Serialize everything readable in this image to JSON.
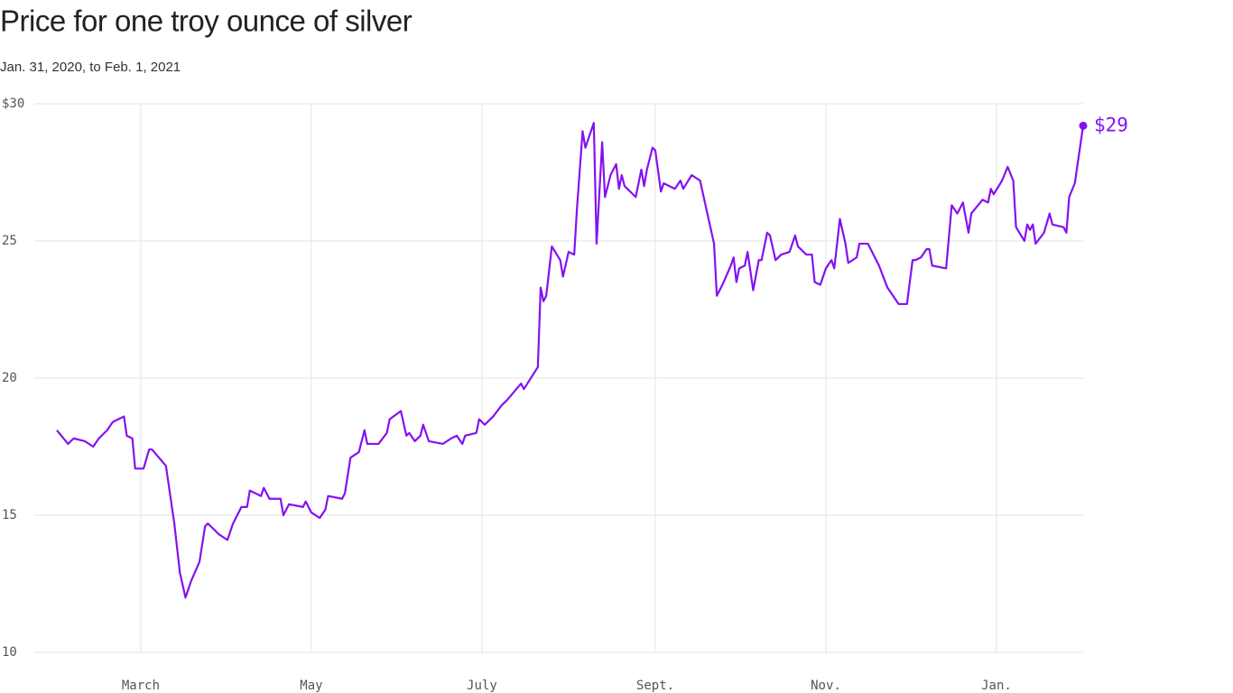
{
  "chart_data": {
    "type": "line",
    "title": "Price for one troy ounce of silver",
    "subtitle": "Jan. 31, 2020, to Feb. 1, 2021",
    "xlim": [
      "2020-01-31",
      "2021-02-01"
    ],
    "xticks": [
      {
        "value": "2020-03-01",
        "label": "March"
      },
      {
        "value": "2020-05-01",
        "label": "May"
      },
      {
        "value": "2020-07-01",
        "label": "July"
      },
      {
        "value": "2020-09-01",
        "label": "Sept."
      },
      {
        "value": "2020-11-01",
        "label": "Nov."
      },
      {
        "value": "2021-01-01",
        "label": "Jan."
      }
    ],
    "ylim": [
      10,
      30
    ],
    "yticks": [
      10,
      15,
      20,
      25,
      {
        "value": 30,
        "label": "$30"
      }
    ],
    "grid": true,
    "end_label": "$29",
    "x": [
      "2020-01-31",
      "2020-02-04",
      "2020-02-06",
      "2020-02-10",
      "2020-02-13",
      "2020-02-15",
      "2020-02-18",
      "2020-02-20",
      "2020-02-24",
      "2020-02-25",
      "2020-02-27",
      "2020-02-28",
      "2020-03-02",
      "2020-03-04",
      "2020-03-05",
      "2020-03-10",
      "2020-03-13",
      "2020-03-15",
      "2020-03-17",
      "2020-03-19",
      "2020-03-22",
      "2020-03-24",
      "2020-03-25",
      "2020-03-29",
      "2020-04-01",
      "2020-04-03",
      "2020-04-06",
      "2020-04-08",
      "2020-04-09",
      "2020-04-13",
      "2020-04-14",
      "2020-04-16",
      "2020-04-20",
      "2020-04-21",
      "2020-04-23",
      "2020-04-28",
      "2020-04-29",
      "2020-05-01",
      "2020-05-04",
      "2020-05-06",
      "2020-05-07",
      "2020-05-12",
      "2020-05-13",
      "2020-05-15",
      "2020-05-18",
      "2020-05-20",
      "2020-05-21",
      "2020-05-25",
      "2020-05-28",
      "2020-05-29",
      "2020-06-02",
      "2020-06-04",
      "2020-06-05",
      "2020-06-07",
      "2020-06-09",
      "2020-06-10",
      "2020-06-12",
      "2020-06-17",
      "2020-06-20",
      "2020-06-22",
      "2020-06-24",
      "2020-06-25",
      "2020-06-29",
      "2020-06-30",
      "2020-07-02",
      "2020-07-05",
      "2020-07-08",
      "2020-07-10",
      "2020-07-15",
      "2020-07-16",
      "2020-07-21",
      "2020-07-22",
      "2020-07-23",
      "2020-07-24",
      "2020-07-26",
      "2020-07-29",
      "2020-07-30",
      "2020-08-01",
      "2020-08-03",
      "2020-08-04",
      "2020-08-06",
      "2020-08-07",
      "2020-08-10",
      "2020-08-11",
      "2020-08-13",
      "2020-08-14",
      "2020-08-16",
      "2020-08-18",
      "2020-08-19",
      "2020-08-20",
      "2020-08-21",
      "2020-08-25",
      "2020-08-27",
      "2020-08-28",
      "2020-08-29",
      "2020-08-31",
      "2020-09-01",
      "2020-09-03",
      "2020-09-04",
      "2020-09-08",
      "2020-09-10",
      "2020-09-11",
      "2020-09-14",
      "2020-09-17",
      "2020-09-22",
      "2020-09-23",
      "2020-09-25",
      "2020-09-28",
      "2020-09-29",
      "2020-09-30",
      "2020-10-01",
      "2020-10-03",
      "2020-10-04",
      "2020-10-06",
      "2020-10-08",
      "2020-10-09",
      "2020-10-11",
      "2020-10-12",
      "2020-10-14",
      "2020-10-16",
      "2020-10-19",
      "2020-10-21",
      "2020-10-22",
      "2020-10-25",
      "2020-10-27",
      "2020-10-28",
      "2020-10-30",
      "2020-11-01",
      "2020-11-03",
      "2020-11-04",
      "2020-11-06",
      "2020-11-08",
      "2020-11-09",
      "2020-11-12",
      "2020-11-13",
      "2020-11-16",
      "2020-11-19",
      "2020-11-20",
      "2020-11-23",
      "2020-11-25",
      "2020-11-27",
      "2020-11-30",
      "2020-12-02",
      "2020-12-03",
      "2020-12-05",
      "2020-12-07",
      "2020-12-08",
      "2020-12-09",
      "2020-12-14",
      "2020-12-16",
      "2020-12-18",
      "2020-12-20",
      "2020-12-22",
      "2020-12-23",
      "2020-12-27",
      "2020-12-29",
      "2020-12-30",
      "2020-12-31",
      "2021-01-03",
      "2021-01-05",
      "2021-01-07",
      "2021-01-08",
      "2021-01-11",
      "2021-01-12",
      "2021-01-13",
      "2021-01-14",
      "2021-01-15",
      "2021-01-18",
      "2021-01-20",
      "2021-01-21",
      "2021-01-25",
      "2021-01-26",
      "2021-01-27",
      "2021-01-29",
      "2021-02-01"
    ],
    "series": [
      {
        "color": "#8412f0",
        "values": [
          18.1,
          17.6,
          17.8,
          17.7,
          17.5,
          17.8,
          18.1,
          18.4,
          18.6,
          17.9,
          17.8,
          16.7,
          16.7,
          17.4,
          17.4,
          16.8,
          14.7,
          12.9,
          12.0,
          12.6,
          13.3,
          14.6,
          14.7,
          14.3,
          14.1,
          14.7,
          15.3,
          15.3,
          15.9,
          15.7,
          16.0,
          15.6,
          15.6,
          15.0,
          15.4,
          15.3,
          15.5,
          15.1,
          14.9,
          15.2,
          15.7,
          15.6,
          15.8,
          17.1,
          17.3,
          18.1,
          17.6,
          17.6,
          18.0,
          18.5,
          18.8,
          17.9,
          18.0,
          17.7,
          17.9,
          18.3,
          17.7,
          17.6,
          17.8,
          17.9,
          17.6,
          17.9,
          18.0,
          18.5,
          18.3,
          18.6,
          19.0,
          19.2,
          19.8,
          19.6,
          20.4,
          23.3,
          22.8,
          23.0,
          24.8,
          24.3,
          23.7,
          24.6,
          24.5,
          26.2,
          29.0,
          28.4,
          29.3,
          24.9,
          28.6,
          26.6,
          27.4,
          27.8,
          26.9,
          27.4,
          27.0,
          26.6,
          27.6,
          27.0,
          27.6,
          28.4,
          28.3,
          26.8,
          27.1,
          26.9,
          27.2,
          26.9,
          27.4,
          27.2,
          24.9,
          23.0,
          23.4,
          24.1,
          24.4,
          23.5,
          24.0,
          24.1,
          24.6,
          23.2,
          24.3,
          24.3,
          25.3,
          25.2,
          24.3,
          24.5,
          24.6,
          25.2,
          24.8,
          24.5,
          24.5,
          23.5,
          23.4,
          24.0,
          24.3,
          24.0,
          25.8,
          24.9,
          24.2,
          24.4,
          24.9,
          24.9,
          24.3,
          24.1,
          23.3,
          23.0,
          22.7,
          22.7,
          24.3,
          24.3,
          24.4,
          24.7,
          24.7,
          24.1,
          24.0,
          26.3,
          26.0,
          26.4,
          25.3,
          26.0,
          26.5,
          26.4,
          26.9,
          26.7,
          27.2,
          27.7,
          27.2,
          25.5,
          25.0,
          25.6,
          25.4,
          25.6,
          24.9,
          25.3,
          26.0,
          25.6,
          25.5,
          25.3,
          26.6,
          27.1,
          29.2
        ]
      }
    ]
  }
}
